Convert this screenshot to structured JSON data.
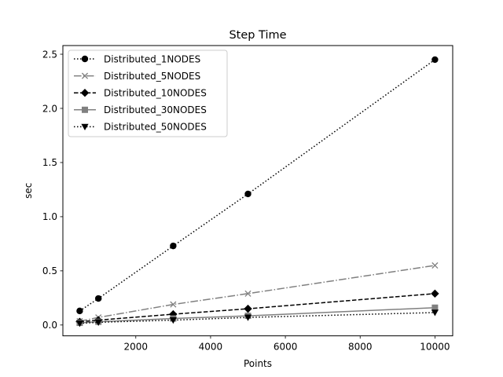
{
  "chart_data": {
    "type": "line",
    "title": "Step Time",
    "xlabel": "Points",
    "ylabel": "sec",
    "xlim": [
      50,
      10475
    ],
    "ylim": [
      -0.1,
      2.58
    ],
    "xticks": [
      2000,
      4000,
      6000,
      8000,
      10000
    ],
    "yticks": [
      0.0,
      0.5,
      1.0,
      1.5,
      2.0,
      2.5
    ],
    "xtick_labels": [
      "2000",
      "4000",
      "6000",
      "8000",
      "10000"
    ],
    "ytick_labels": [
      "0.0",
      "0.5",
      "1.0",
      "1.5",
      "2.0",
      "2.5"
    ],
    "grid": false,
    "legend_position": "top-left",
    "series": [
      {
        "name": "Distributed_1NODES",
        "x": [
          500,
          1000,
          3000,
          5000,
          10000
        ],
        "y": [
          0.13,
          0.245,
          0.73,
          1.21,
          2.45
        ],
        "color": "#000000",
        "dash": "dotted",
        "marker": "circle"
      },
      {
        "name": "Distributed_5NODES",
        "x": [
          500,
          1000,
          3000,
          5000,
          10000
        ],
        "y": [
          0.035,
          0.07,
          0.19,
          0.29,
          0.55
        ],
        "color": "#808080",
        "dash": "dashdot",
        "marker": "x"
      },
      {
        "name": "Distributed_10NODES",
        "x": [
          500,
          1000,
          3000,
          5000,
          10000
        ],
        "y": [
          0.03,
          0.045,
          0.1,
          0.15,
          0.29
        ],
        "color": "#000000",
        "dash": "dashed",
        "marker": "diamond"
      },
      {
        "name": "Distributed_30NODES",
        "x": [
          500,
          1000,
          3000,
          5000,
          10000
        ],
        "y": [
          0.02,
          0.03,
          0.06,
          0.085,
          0.16
        ],
        "color": "#808080",
        "dash": "solid",
        "marker": "square"
      },
      {
        "name": "Distributed_50NODES",
        "x": [
          500,
          1000,
          3000,
          5000,
          10000
        ],
        "y": [
          0.015,
          0.025,
          0.045,
          0.07,
          0.115
        ],
        "color": "#000000",
        "dash": "dotted",
        "marker": "triangle-down"
      }
    ]
  }
}
